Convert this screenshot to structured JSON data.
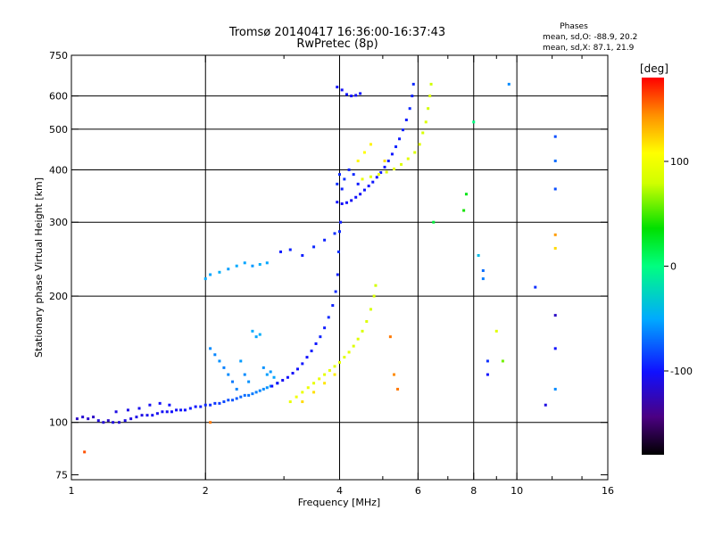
{
  "chart_data": {
    "type": "scatter",
    "title": "Tromsø 20140417 16:36:00-16:37:43",
    "subtitle": "RwPretec (8p)",
    "xlabel": "Frequency [MHz]",
    "ylabel": "Stationary phase Virtual Height [km]",
    "x_scale": "log",
    "y_scale": "log",
    "xlim": [
      1,
      16
    ],
    "ylim": [
      73,
      750
    ],
    "x_ticks": [
      1,
      2,
      4,
      6,
      8,
      10,
      16
    ],
    "x_tick_labels": [
      "1",
      "2",
      "4",
      "6",
      "8",
      "10",
      "16"
    ],
    "x_grid": [
      2,
      4,
      6,
      8,
      10
    ],
    "y_ticks": [
      75,
      100,
      200,
      300,
      400,
      500,
      600,
      750
    ],
    "y_tick_labels": [
      "75",
      "100",
      "200",
      "300",
      "400",
      "500",
      "600",
      "750"
    ],
    "y_grid": [
      100,
      200,
      300,
      400,
      500,
      600
    ],
    "grid": true,
    "phase_box": {
      "title": "Phases",
      "line1": "mean, sd,O: -88.9, 20.2",
      "line2": "mean, sd,X:  87.1, 21.9"
    },
    "colorbar": {
      "label": "[deg]",
      "min": -180,
      "max": 180,
      "ticks": [
        100,
        0,
        -100
      ],
      "tick_labels": [
        "100",
        "0",
        "-100"
      ]
    },
    "series": [
      {
        "name": "",
        "color_by_phase": true,
        "points": [
          [
            1.03,
            102,
            -120
          ],
          [
            1.06,
            103,
            -115
          ],
          [
            1.09,
            102,
            -118
          ],
          [
            1.12,
            103,
            -120
          ],
          [
            1.15,
            101,
            -112
          ],
          [
            1.18,
            100,
            -115
          ],
          [
            1.21,
            101,
            -118
          ],
          [
            1.24,
            100,
            -112
          ],
          [
            1.28,
            100,
            -115
          ],
          [
            1.32,
            101,
            -110
          ],
          [
            1.36,
            102,
            -112
          ],
          [
            1.4,
            103,
            -108
          ],
          [
            1.44,
            104,
            -110
          ],
          [
            1.48,
            104,
            -106
          ],
          [
            1.52,
            104,
            -104
          ],
          [
            1.56,
            105,
            -106
          ],
          [
            1.6,
            106,
            -102
          ],
          [
            1.64,
            106,
            -104
          ],
          [
            1.68,
            106,
            -100
          ],
          [
            1.72,
            107,
            -102
          ],
          [
            1.76,
            107,
            -98
          ],
          [
            1.8,
            107,
            -100
          ],
          [
            1.85,
            108,
            -96
          ],
          [
            1.9,
            109,
            -98
          ],
          [
            1.95,
            109,
            -94
          ],
          [
            2.0,
            110,
            -92
          ],
          [
            2.05,
            110,
            -90
          ],
          [
            2.1,
            111,
            -88
          ],
          [
            2.15,
            111,
            -86
          ],
          [
            2.2,
            112,
            -82
          ],
          [
            2.25,
            113,
            -80
          ],
          [
            2.3,
            113,
            -78
          ],
          [
            2.35,
            114,
            -76
          ],
          [
            2.4,
            115,
            -72
          ],
          [
            2.45,
            116,
            -70
          ],
          [
            2.5,
            116,
            -68
          ],
          [
            2.55,
            117,
            -66
          ],
          [
            2.6,
            118,
            -64
          ],
          [
            2.65,
            119,
            -62
          ],
          [
            2.7,
            120,
            -60
          ],
          [
            2.75,
            121,
            -58
          ],
          [
            2.8,
            122,
            -56
          ],
          [
            1.26,
            106,
            -110
          ],
          [
            1.34,
            107,
            -108
          ],
          [
            1.42,
            108,
            -106
          ],
          [
            1.5,
            110,
            -104
          ],
          [
            1.58,
            111,
            -102
          ],
          [
            1.66,
            110,
            -100
          ],
          [
            2.05,
            150,
            -60
          ],
          [
            2.1,
            145,
            -62
          ],
          [
            2.15,
            140,
            -58
          ],
          [
            2.2,
            135,
            -64
          ],
          [
            2.25,
            130,
            -60
          ],
          [
            2.3,
            125,
            -66
          ],
          [
            2.35,
            120,
            -62
          ],
          [
            2.4,
            140,
            -55
          ],
          [
            2.45,
            130,
            -60
          ],
          [
            2.5,
            125,
            -58
          ],
          [
            2.55,
            165,
            -50
          ],
          [
            2.6,
            160,
            -52
          ],
          [
            2.65,
            162,
            -48
          ],
          [
            2.7,
            135,
            -58
          ],
          [
            2.75,
            130,
            -54
          ],
          [
            2.8,
            132,
            -56
          ],
          [
            2.85,
            128,
            -52
          ],
          [
            2.9,
            124,
            -58
          ],
          [
            2.0,
            220,
            -50
          ],
          [
            2.05,
            225,
            -52
          ],
          [
            2.15,
            228,
            -48
          ],
          [
            2.25,
            232,
            -54
          ],
          [
            2.35,
            236,
            -50
          ],
          [
            2.45,
            240,
            -52
          ],
          [
            2.55,
            236,
            -56
          ],
          [
            2.65,
            238,
            -48
          ],
          [
            2.75,
            240,
            -52
          ],
          [
            2.82,
            122,
            -100
          ],
          [
            2.9,
            124,
            -102
          ],
          [
            2.98,
            126,
            -104
          ],
          [
            3.06,
            128,
            -100
          ],
          [
            3.14,
            131,
            -102
          ],
          [
            3.22,
            134,
            -100
          ],
          [
            3.3,
            138,
            -98
          ],
          [
            3.38,
            143,
            -100
          ],
          [
            3.46,
            148,
            -96
          ],
          [
            3.54,
            154,
            -98
          ],
          [
            3.62,
            160,
            -94
          ],
          [
            3.7,
            168,
            -96
          ],
          [
            3.78,
            178,
            -92
          ],
          [
            3.86,
            190,
            -94
          ],
          [
            3.92,
            205,
            -92
          ],
          [
            3.96,
            225,
            -94
          ],
          [
            3.98,
            255,
            -90
          ],
          [
            4.0,
            285,
            -92
          ],
          [
            4.02,
            300,
            -95
          ],
          [
            3.3,
            250,
            -95
          ],
          [
            3.5,
            262,
            -92
          ],
          [
            3.7,
            272,
            -94
          ],
          [
            3.9,
            282,
            -90
          ],
          [
            2.95,
            255,
            -96
          ],
          [
            3.1,
            258,
            -94
          ],
          [
            3.95,
            335,
            -100
          ],
          [
            4.05,
            332,
            -102
          ],
          [
            4.15,
            334,
            -100
          ],
          [
            4.25,
            338,
            -104
          ],
          [
            4.35,
            344,
            -100
          ],
          [
            4.45,
            350,
            -102
          ],
          [
            4.55,
            358,
            -98
          ],
          [
            4.65,
            366,
            -100
          ],
          [
            4.75,
            374,
            -98
          ],
          [
            4.85,
            384,
            -100
          ],
          [
            4.95,
            394,
            -96
          ],
          [
            5.05,
            406,
            -98
          ],
          [
            5.15,
            420,
            -96
          ],
          [
            5.25,
            436,
            -98
          ],
          [
            5.35,
            454,
            -94
          ],
          [
            5.45,
            474,
            -96
          ],
          [
            5.55,
            498,
            -94
          ],
          [
            5.65,
            526,
            -96
          ],
          [
            5.75,
            560,
            -92
          ],
          [
            5.82,
            600,
            -94
          ],
          [
            5.86,
            640,
            -92
          ],
          [
            3.95,
            370,
            -90
          ],
          [
            4.0,
            390,
            -92
          ],
          [
            4.05,
            360,
            -94
          ],
          [
            4.1,
            380,
            -90
          ],
          [
            4.2,
            400,
            -94
          ],
          [
            4.3,
            390,
            -92
          ],
          [
            4.4,
            370,
            -96
          ],
          [
            3.95,
            630,
            -100
          ],
          [
            4.05,
            620,
            -102
          ],
          [
            4.15,
            605,
            -98
          ],
          [
            4.25,
            600,
            -100
          ],
          [
            4.35,
            602,
            -102
          ],
          [
            4.45,
            608,
            -98
          ],
          [
            3.1,
            112,
            95
          ],
          [
            3.2,
            115,
            100
          ],
          [
            3.3,
            118,
            96
          ],
          [
            3.4,
            121,
            98
          ],
          [
            3.5,
            124,
            94
          ],
          [
            3.6,
            127,
            96
          ],
          [
            3.7,
            130,
            92
          ],
          [
            3.8,
            133,
            94
          ],
          [
            3.9,
            136,
            90
          ],
          [
            4.0,
            139,
            92
          ],
          [
            4.1,
            143,
            90
          ],
          [
            4.2,
            147,
            92
          ],
          [
            4.3,
            152,
            88
          ],
          [
            4.4,
            158,
            90
          ],
          [
            4.5,
            165,
            86
          ],
          [
            4.6,
            174,
            88
          ],
          [
            4.7,
            186,
            84
          ],
          [
            4.78,
            200,
            86
          ],
          [
            4.82,
            212,
            82
          ],
          [
            3.3,
            112,
            120
          ],
          [
            3.5,
            118,
            118
          ],
          [
            3.7,
            124,
            116
          ],
          [
            3.9,
            130,
            114
          ],
          [
            4.5,
            380,
            95
          ],
          [
            4.7,
            385,
            92
          ],
          [
            4.9,
            390,
            96
          ],
          [
            5.1,
            395,
            90
          ],
          [
            5.3,
            402,
            94
          ],
          [
            5.5,
            412,
            88
          ],
          [
            5.7,
            425,
            92
          ],
          [
            5.9,
            440,
            86
          ],
          [
            6.05,
            460,
            90
          ],
          [
            6.15,
            490,
            84
          ],
          [
            6.25,
            520,
            88
          ],
          [
            6.32,
            560,
            82
          ],
          [
            6.38,
            600,
            86
          ],
          [
            6.42,
            640,
            80
          ],
          [
            4.4,
            420,
            110
          ],
          [
            4.55,
            440,
            108
          ],
          [
            4.7,
            460,
            112
          ],
          [
            5.05,
            420,
            118
          ],
          [
            6.5,
            300,
            20
          ],
          [
            7.6,
            320,
            40
          ],
          [
            7.7,
            350,
            30
          ],
          [
            8.0,
            520,
            0
          ],
          [
            8.2,
            250,
            -40
          ],
          [
            8.4,
            230,
            -70
          ],
          [
            8.4,
            220,
            -65
          ],
          [
            8.6,
            140,
            -90
          ],
          [
            8.6,
            130,
            -100
          ],
          [
            9.0,
            165,
            90
          ],
          [
            9.3,
            140,
            60
          ],
          [
            9.6,
            640,
            -60
          ],
          [
            12.2,
            480,
            -80
          ],
          [
            12.2,
            420,
            -70
          ],
          [
            12.2,
            360,
            -80
          ],
          [
            12.2,
            280,
            140
          ],
          [
            12.2,
            260,
            120
          ],
          [
            12.2,
            180,
            -120
          ],
          [
            12.2,
            150,
            -100
          ],
          [
            12.2,
            120,
            -60
          ],
          [
            11.6,
            110,
            -110
          ],
          [
            11.0,
            210,
            -90
          ],
          [
            1.07,
            85,
            160
          ],
          [
            2.05,
            100,
            150
          ],
          [
            5.2,
            160,
            150
          ],
          [
            5.3,
            130,
            145
          ],
          [
            5.4,
            120,
            150
          ]
        ]
      }
    ]
  }
}
